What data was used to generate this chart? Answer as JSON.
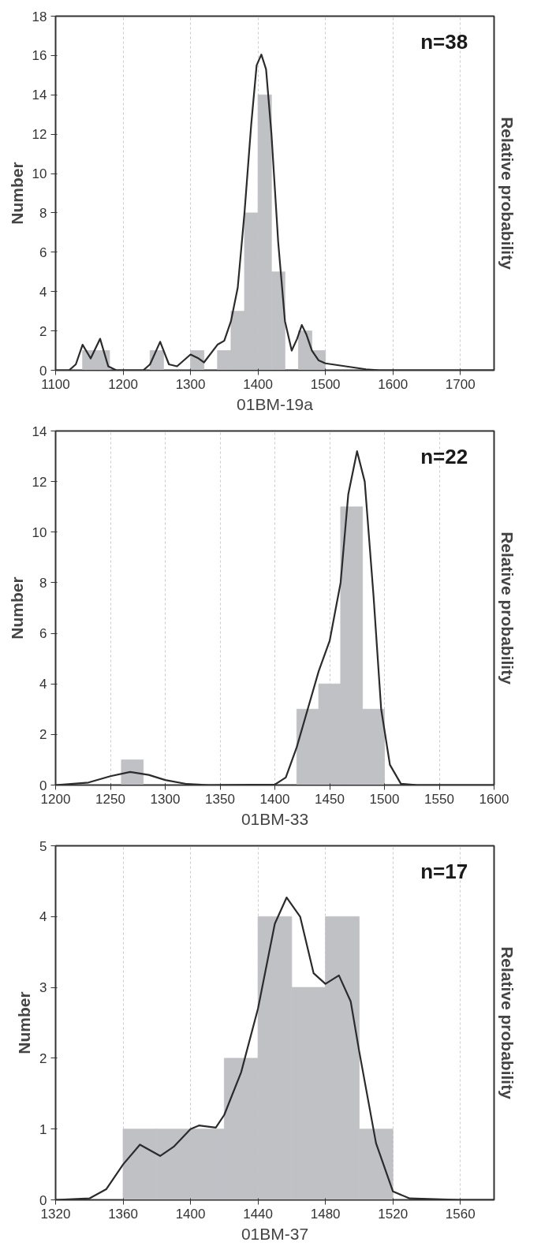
{
  "chart_data": [
    {
      "type": "histogram",
      "xlabel": "01BM-19a",
      "ylabel": "Number",
      "y2label": "Relative probability",
      "annotations": [
        "n=38"
      ],
      "bins": [
        1140,
        1160,
        1180,
        1200,
        1220,
        1240,
        1260,
        1280,
        1300,
        1320,
        1340,
        1360,
        1380,
        1400,
        1420,
        1440,
        1460,
        1480,
        1500
      ],
      "values": [
        1,
        1,
        0,
        0,
        0,
        1,
        0,
        0,
        1,
        0,
        1,
        3,
        8,
        14,
        5,
        0,
        2,
        1
      ],
      "color": "#c0c1c5",
      "series": [
        {
          "type": "line",
          "color": "#2b2b2b",
          "x": [
            1100,
            1120,
            1130,
            1140,
            1152,
            1166,
            1178,
            1190,
            1230,
            1240,
            1255,
            1268,
            1280,
            1300,
            1312,
            1320,
            1340,
            1350,
            1360,
            1370,
            1380,
            1390,
            1398,
            1405,
            1412,
            1420,
            1430,
            1440,
            1450,
            1458,
            1465,
            1472,
            1480,
            1490,
            1500,
            1520,
            1540,
            1560,
            1580,
            1700,
            1750
          ],
          "values": [
            0,
            0,
            0.3,
            1.3,
            0.6,
            1.6,
            0.2,
            0,
            0,
            0.3,
            1.45,
            0.3,
            0.2,
            0.8,
            0.6,
            0.4,
            1.3,
            1.5,
            2.5,
            4.2,
            8,
            12.5,
            15.5,
            16.05,
            15.3,
            12,
            6.5,
            2.5,
            1,
            1.6,
            2.3,
            1.8,
            1,
            0.5,
            0.35,
            0.25,
            0.15,
            0.05,
            0,
            0,
            0
          ]
        }
      ],
      "xlim": [
        1100,
        1750
      ],
      "xticks": [
        1100,
        1200,
        1300,
        1400,
        1500,
        1600,
        1700
      ],
      "ylim": [
        0,
        18
      ],
      "yticks": [
        0,
        2,
        4,
        6,
        8,
        10,
        12,
        14,
        16,
        18
      ],
      "grid": "x"
    },
    {
      "type": "histogram",
      "xlabel": "01BM-33",
      "ylabel": "Number",
      "y2label": "Relative probability",
      "annotations": [
        "n=22"
      ],
      "bins": [
        1260,
        1280,
        1300,
        1320,
        1340,
        1360,
        1380,
        1400,
        1420,
        1440,
        1460,
        1480,
        1500
      ],
      "values": [
        1,
        0,
        0,
        0,
        0,
        0,
        0,
        0,
        3,
        4,
        11,
        3
      ],
      "color": "#c0c1c5",
      "series": [
        {
          "type": "line",
          "color": "#2b2b2b",
          "x": [
            1200,
            1230,
            1250,
            1268,
            1285,
            1300,
            1320,
            1340,
            1400,
            1410,
            1420,
            1430,
            1440,
            1450,
            1460,
            1467,
            1475,
            1482,
            1490,
            1497,
            1505,
            1515,
            1530,
            1600
          ],
          "values": [
            0,
            0.1,
            0.35,
            0.52,
            0.4,
            0.2,
            0.04,
            0,
            0.02,
            0.3,
            1.5,
            3,
            4.5,
            5.7,
            8,
            11.5,
            13.2,
            12,
            7.5,
            3,
            0.8,
            0.05,
            0,
            0
          ]
        }
      ],
      "xlim": [
        1200,
        1600
      ],
      "xticks": [
        1200,
        1250,
        1300,
        1350,
        1400,
        1450,
        1500,
        1550,
        1600
      ],
      "ylim": [
        0,
        14
      ],
      "yticks": [
        0,
        2,
        4,
        6,
        8,
        10,
        12,
        14
      ],
      "grid": "x"
    },
    {
      "type": "histogram",
      "xlabel": "01BM-37",
      "ylabel": "Number",
      "y2label": "Relative probability",
      "annotations": [
        "n=17"
      ],
      "bins": [
        1360,
        1380,
        1400,
        1420,
        1440,
        1460,
        1480,
        1500,
        1520
      ],
      "values": [
        1,
        1,
        1,
        2,
        4,
        3,
        4,
        1
      ],
      "color": "#c0c1c5",
      "series": [
        {
          "type": "line",
          "color": "#2b2b2b",
          "x": [
            1320,
            1340,
            1350,
            1360,
            1370,
            1382,
            1390,
            1400,
            1405,
            1415,
            1420,
            1430,
            1440,
            1450,
            1457,
            1465,
            1473,
            1480,
            1488,
            1495,
            1500,
            1510,
            1520,
            1530,
            1560,
            1580
          ],
          "values": [
            0,
            0.02,
            0.15,
            0.5,
            0.78,
            0.62,
            0.75,
            1.0,
            1.05,
            1.02,
            1.2,
            1.8,
            2.7,
            3.9,
            4.27,
            4.0,
            3.2,
            3.05,
            3.17,
            2.8,
            2.1,
            0.8,
            0.12,
            0.02,
            0,
            0
          ]
        }
      ],
      "xlim": [
        1320,
        1580
      ],
      "xticks": [
        1320,
        1360,
        1400,
        1440,
        1480,
        1520,
        1560
      ],
      "ylim": [
        0,
        5
      ],
      "yticks": [
        0,
        1,
        2,
        3,
        4,
        5
      ],
      "grid": "x"
    }
  ]
}
